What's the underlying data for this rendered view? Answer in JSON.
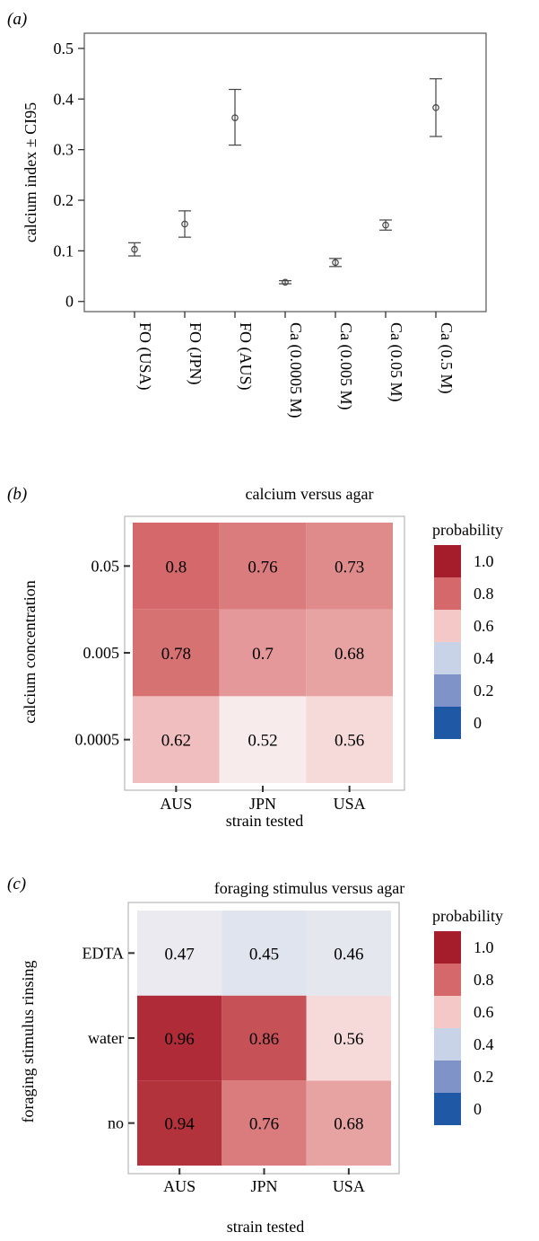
{
  "chart_data": [
    {
      "panel": "(a)",
      "type": "scatter",
      "title": "",
      "xlabel": "",
      "ylabel": "calcium index ± CI95",
      "ylim": [
        -0.02,
        0.53
      ],
      "yticks": [
        "0",
        "0.1",
        "0.2",
        "0.3",
        "0.4",
        "0.5"
      ],
      "grid": false,
      "categories": [
        "FO (USA)",
        "FO (JPN)",
        "FO (AUS)",
        "Ca (0.0005 M)",
        "Ca (0.005 M)",
        "Ca (0.05 M)",
        "Ca (0.5 M)"
      ],
      "series": [
        {
          "values": [
            0.103,
            0.153,
            0.363,
            0.038,
            0.077,
            0.151,
            0.383
          ],
          "ci_low": [
            0.09,
            0.127,
            0.309,
            0.035,
            0.069,
            0.141,
            0.326
          ],
          "ci_high": [
            0.116,
            0.179,
            0.419,
            0.041,
            0.085,
            0.161,
            0.44
          ]
        }
      ]
    },
    {
      "panel": "(b)",
      "type": "heatmap",
      "title": "calcium versus agar",
      "xlabel": "strain tested",
      "ylabel": "calcium concentration",
      "x": [
        "AUS",
        "JPN",
        "USA"
      ],
      "y": [
        "0.0005",
        "0.005",
        "0.05"
      ],
      "values": [
        [
          0.62,
          0.52,
          0.56
        ],
        [
          0.78,
          0.7,
          0.68
        ],
        [
          0.8,
          0.76,
          0.73
        ]
      ],
      "labels": [
        [
          "0.62",
          "0.52",
          "0.56"
        ],
        [
          "0.78",
          "0.7",
          "0.68"
        ],
        [
          "0.8",
          "0.76",
          "0.73"
        ]
      ],
      "legend": {
        "title": "probability",
        "placement": "right",
        "entries": [
          "1.0",
          "0.8",
          "0.6",
          "0.4",
          "0.2",
          "0"
        ],
        "colors": [
          "#a51c2a",
          "#d4686a",
          "#f3c8c7",
          "#c8d3e8",
          "#7f93c8",
          "#1f58a4"
        ]
      }
    },
    {
      "panel": "(c)",
      "type": "heatmap",
      "title": "foraging stimulus versus agar",
      "xlabel": "strain tested",
      "ylabel": "foraging stimulus rinsing",
      "x": [
        "AUS",
        "JPN",
        "USA"
      ],
      "y": [
        "no",
        "water",
        "EDTA"
      ],
      "values": [
        [
          0.94,
          0.76,
          0.68
        ],
        [
          0.96,
          0.86,
          0.56
        ],
        [
          0.47,
          0.45,
          0.46
        ]
      ],
      "labels": [
        [
          "0.94",
          "0.76",
          "0.68"
        ],
        [
          "0.96",
          "0.86",
          "0.56"
        ],
        [
          "0.47",
          "0.45",
          "0.46"
        ]
      ],
      "legend": {
        "title": "probability",
        "placement": "right",
        "entries": [
          "1.0",
          "0.8",
          "0.6",
          "0.4",
          "0.2",
          "0"
        ],
        "colors": [
          "#a51c2a",
          "#d4686a",
          "#f3c8c7",
          "#c8d3e8",
          "#7f93c8",
          "#1f58a4"
        ]
      }
    }
  ]
}
